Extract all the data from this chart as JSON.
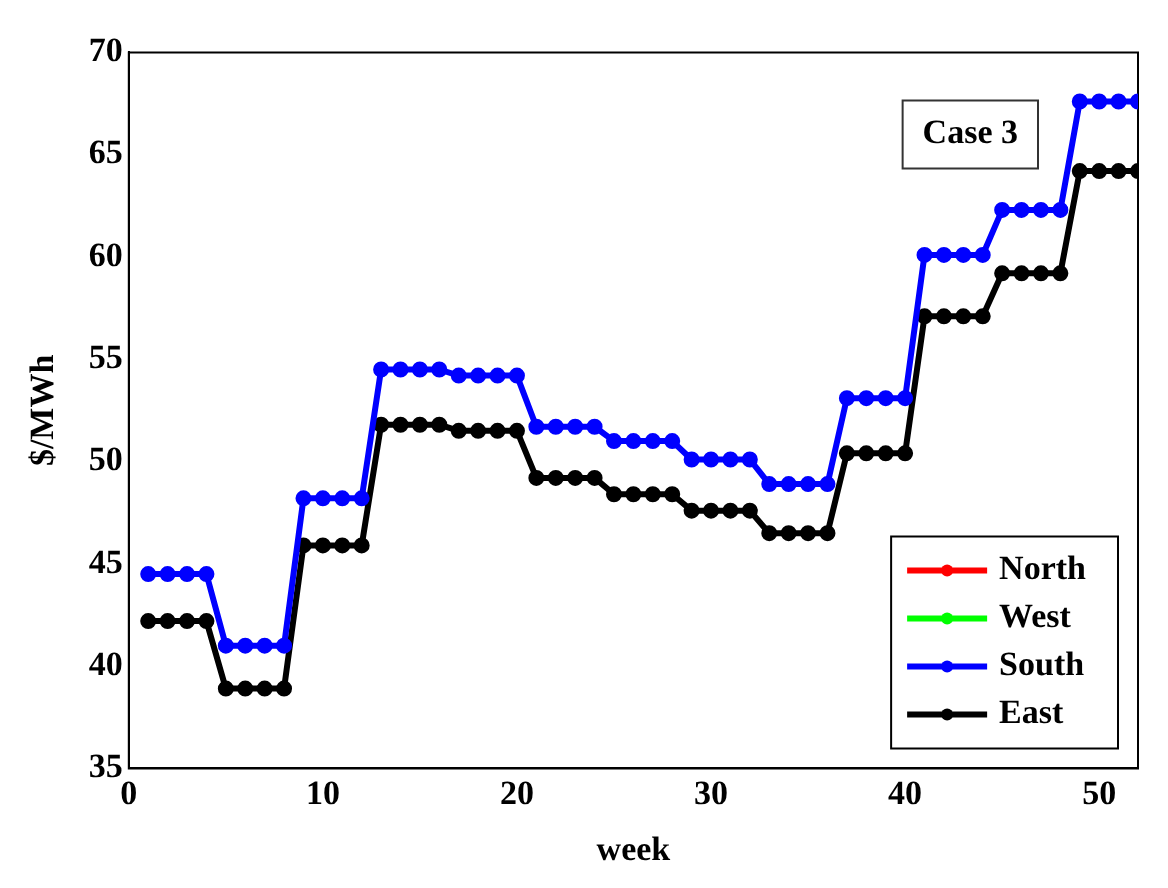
{
  "chart_data": {
    "type": "line",
    "xlabel": "week",
    "ylabel": "$/MWh",
    "annotations": [
      "Case 3"
    ],
    "x": [
      1,
      2,
      3,
      4,
      5,
      6,
      7,
      8,
      9,
      10,
      11,
      12,
      13,
      14,
      15,
      16,
      17,
      18,
      19,
      20,
      21,
      22,
      23,
      24,
      25,
      26,
      27,
      28,
      29,
      30,
      31,
      32,
      33,
      34,
      35,
      36,
      37,
      38,
      39,
      40,
      41,
      42,
      43,
      44,
      45,
      46,
      47,
      48,
      49,
      50,
      51,
      52
    ],
    "series": [
      {
        "name": "North",
        "color": "#ff0000",
        "values": [
          null,
          null,
          null,
          null,
          null,
          null,
          null,
          null,
          null,
          null,
          null,
          null,
          null,
          null,
          null,
          null,
          null,
          null,
          null,
          null,
          null,
          null,
          null,
          null,
          null,
          null,
          null,
          null,
          null,
          null,
          null,
          null,
          null,
          null,
          null,
          null,
          null,
          null,
          null,
          null,
          null,
          null,
          null,
          null,
          null,
          null,
          null,
          null,
          null,
          null,
          null,
          null
        ]
      },
      {
        "name": "West",
        "color": "#00ff00",
        "values": [
          null,
          null,
          null,
          null,
          null,
          null,
          null,
          null,
          null,
          null,
          null,
          null,
          null,
          null,
          null,
          null,
          null,
          null,
          null,
          null,
          null,
          null,
          null,
          null,
          null,
          null,
          null,
          null,
          null,
          null,
          null,
          null,
          null,
          null,
          null,
          null,
          null,
          null,
          null,
          null,
          null,
          null,
          null,
          null,
          null,
          null,
          null,
          null,
          null,
          null,
          null,
          null
        ]
      },
      {
        "name": "South",
        "color": "#0000ff",
        "values": [
          44.5,
          44.5,
          44.5,
          44.5,
          41.0,
          41.0,
          41.0,
          41.0,
          48.2,
          48.2,
          48.2,
          48.2,
          54.5,
          54.5,
          54.5,
          54.5,
          54.2,
          54.2,
          54.2,
          54.2,
          51.7,
          51.7,
          51.7,
          51.7,
          51.0,
          51.0,
          51.0,
          51.0,
          50.1,
          50.1,
          50.1,
          50.1,
          48.9,
          48.9,
          48.9,
          48.9,
          53.1,
          53.1,
          53.1,
          53.1,
          60.1,
          60.1,
          60.1,
          60.1,
          62.3,
          62.3,
          62.3,
          62.3,
          67.6,
          67.6,
          67.6,
          67.6
        ]
      },
      {
        "name": "East",
        "color": "#000000",
        "values": [
          42.2,
          42.2,
          42.2,
          42.2,
          38.9,
          38.9,
          38.9,
          38.9,
          45.9,
          45.9,
          45.9,
          45.9,
          51.8,
          51.8,
          51.8,
          51.8,
          51.5,
          51.5,
          51.5,
          51.5,
          49.2,
          49.2,
          49.2,
          49.2,
          48.4,
          48.4,
          48.4,
          48.4,
          47.6,
          47.6,
          47.6,
          47.6,
          46.5,
          46.5,
          46.5,
          46.5,
          50.4,
          50.4,
          50.4,
          50.4,
          57.1,
          57.1,
          57.1,
          57.1,
          59.2,
          59.2,
          59.2,
          59.2,
          64.2,
          64.2,
          64.2,
          64.2
        ]
      }
    ],
    "xlim": [
      0,
      52
    ],
    "xticks": [
      0,
      10,
      20,
      30,
      40,
      50
    ],
    "ylim": [
      35,
      70
    ],
    "yticks": [
      35,
      40,
      45,
      50,
      55,
      60,
      65,
      70
    ],
    "grid": false,
    "legend": "bottom right",
    "marker": "circle",
    "line_style": "solid"
  }
}
